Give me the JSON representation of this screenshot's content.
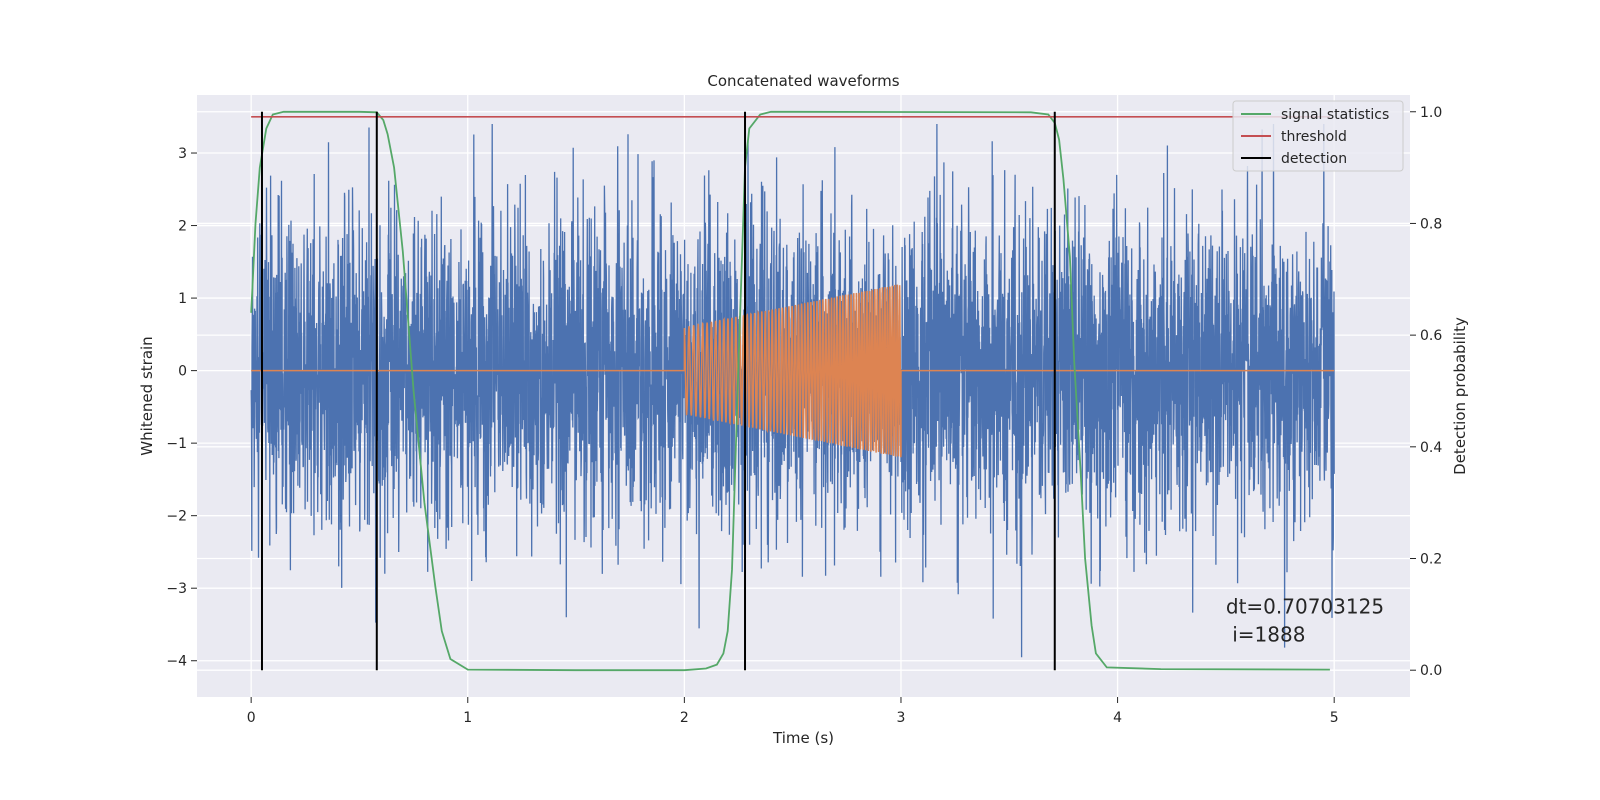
{
  "chart_data": {
    "type": "line",
    "title": "Concatenated waveforms",
    "xlabel": "Time (s)",
    "ylabel": "Whitened strain",
    "ylabel_right": "Detection probability",
    "xlim": [
      -0.25,
      5.35
    ],
    "ylim": [
      -4.5,
      3.8
    ],
    "ylim_right": [
      -0.048,
      1.03
    ],
    "xticks": [
      0,
      1,
      2,
      3,
      4,
      5
    ],
    "yticks": [
      3,
      2,
      1,
      0,
      -1,
      -2,
      -3,
      -4
    ],
    "yticks_right": [
      1.0,
      0.8,
      0.6,
      0.4,
      0.2,
      0.0
    ],
    "grid": true,
    "legend_position": "top-right",
    "annotation": {
      "line1": "dt=0.70703125",
      "line2": " i=1888",
      "x": 4.5,
      "y": -3.35
    },
    "series": [
      {
        "name": "",
        "axis": "left",
        "role": "whitened strain noise",
        "color": "#4c72b0",
        "x_range": [
          0,
          5
        ],
        "amplitude_sd": 1.0,
        "peak_max": 3.4,
        "peak_min": -4.1
      },
      {
        "name": "",
        "axis": "left",
        "role": "injected chirp",
        "color": "#dd8452",
        "x_range": [
          0,
          5
        ],
        "chirp_start": 2.0,
        "chirp_end": 3.0,
        "amp_start": 0.6,
        "amp_end": 1.2
      },
      {
        "name": "signal statistics",
        "axis": "right",
        "color": "#55a868",
        "x": [
          0,
          0.02,
          0.04,
          0.07,
          0.1,
          0.15,
          0.5,
          0.58,
          0.61,
          0.63,
          0.66,
          0.7,
          0.75,
          0.8,
          0.85,
          0.88,
          0.92,
          1.0,
          1.5,
          2.0,
          2.1,
          2.15,
          2.18,
          2.2,
          2.22,
          2.25,
          2.28,
          2.3,
          2.35,
          2.4,
          2.5,
          3.6,
          3.68,
          3.71,
          3.73,
          3.75,
          3.78,
          3.8,
          3.83,
          3.85,
          3.88,
          3.9,
          3.95,
          4.2,
          4.98
        ],
        "values": [
          0.64,
          0.8,
          0.9,
          0.97,
          0.995,
          1.0,
          1.0,
          0.999,
          0.985,
          0.96,
          0.9,
          0.75,
          0.5,
          0.3,
          0.15,
          0.07,
          0.02,
          0.001,
          0.0,
          0.0,
          0.003,
          0.01,
          0.03,
          0.07,
          0.18,
          0.55,
          0.9,
          0.97,
          0.995,
          1.0,
          1.0,
          0.999,
          0.995,
          0.98,
          0.95,
          0.88,
          0.74,
          0.55,
          0.35,
          0.2,
          0.08,
          0.03,
          0.005,
          0.002,
          0.001
        ]
      },
      {
        "name": "threshold",
        "axis": "right",
        "color": "#c44e52",
        "x": [
          0,
          4.98
        ],
        "values": [
          0.991,
          0.991
        ]
      },
      {
        "name": "detection",
        "axis": "right",
        "color": "#000000",
        "type": "vlines",
        "x": [
          0.05,
          0.58,
          2.28,
          3.71
        ],
        "ymin": 0.0,
        "ymax": 1.0
      }
    ]
  }
}
